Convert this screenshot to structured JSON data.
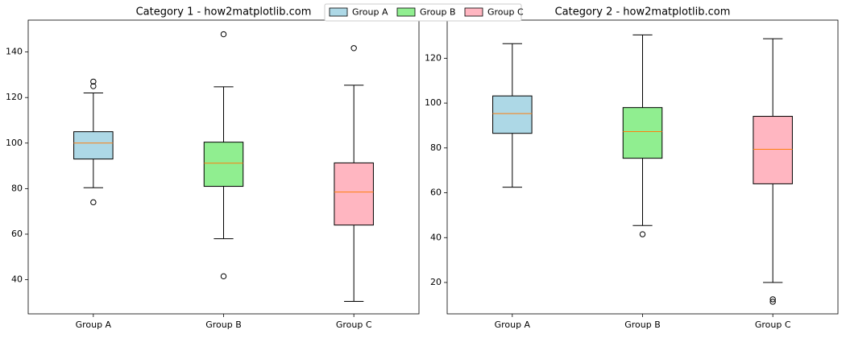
{
  "legend": {
    "items": [
      {
        "name": "Group A",
        "color": "#add8e6"
      },
      {
        "name": "Group B",
        "color": "#90ee90"
      },
      {
        "name": "Group C",
        "color": "#ffb6c1"
      }
    ]
  },
  "median_color": "#ff7f0e",
  "chart_data": [
    {
      "type": "box",
      "title": "Category 1 - how2matplotlib.com",
      "categories": [
        "Group A",
        "Group B",
        "Group C"
      ],
      "boxes": [
        {
          "whisker_low": 80.4,
          "q1": 93,
          "median": 100,
          "q3": 105,
          "whisker_high": 122,
          "outliers": [
            127,
            125,
            74
          ]
        },
        {
          "whisker_low": 58,
          "q1": 81,
          "median": 91.2,
          "q3": 100.4,
          "whisker_high": 124.7,
          "outliers": [
            147.8,
            41.5
          ]
        },
        {
          "whisker_low": 30.5,
          "q1": 64,
          "median": 78.5,
          "q3": 91.3,
          "whisker_high": 125.4,
          "outliers": [
            141.7
          ]
        }
      ],
      "ylim": [
        25,
        154
      ],
      "yticks": [
        40,
        60,
        80,
        100,
        120,
        140
      ]
    },
    {
      "type": "box",
      "title": "Category 2 - how2matplotlib.com",
      "categories": [
        "Group A",
        "Group B",
        "Group C"
      ],
      "boxes": [
        {
          "whisker_low": 62.5,
          "q1": 86.5,
          "median": 95.3,
          "q3": 103.2,
          "whisker_high": 126.5,
          "outliers": []
        },
        {
          "whisker_low": 45.4,
          "q1": 75.4,
          "median": 87.3,
          "q3": 98,
          "whisker_high": 130.4,
          "outliers": [
            41.5
          ]
        },
        {
          "whisker_low": 20,
          "q1": 64,
          "median": 79.4,
          "q3": 94.1,
          "whisker_high": 128.7,
          "outliers": [
            12.5,
            11.4
          ]
        }
      ],
      "ylim": [
        6,
        137
      ],
      "yticks": [
        20,
        40,
        60,
        80,
        100,
        120
      ]
    }
  ]
}
